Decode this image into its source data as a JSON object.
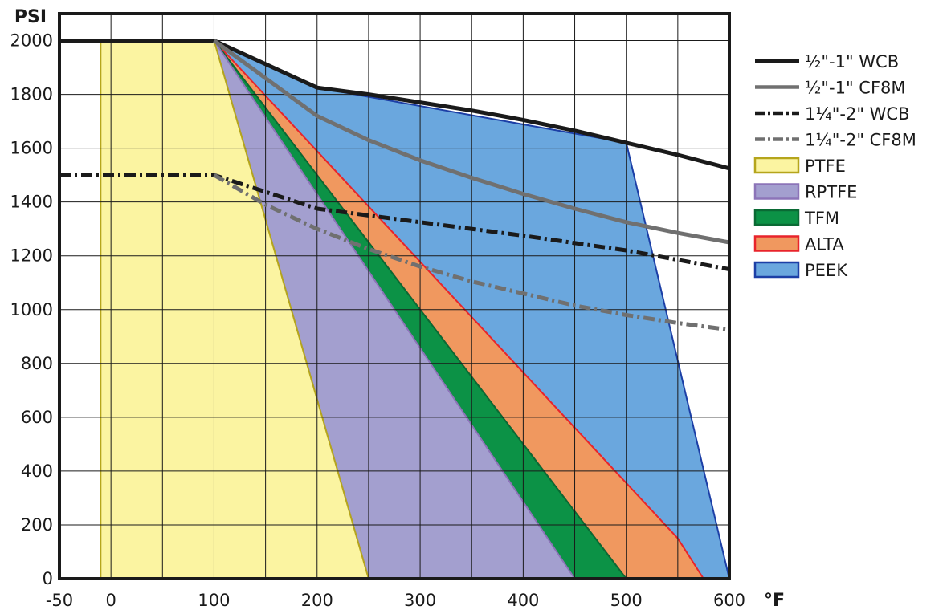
{
  "chart_data": {
    "type": "area",
    "title": "",
    "xlabel": "°F",
    "ylabel": "PSI",
    "xlim": [
      -50,
      600
    ],
    "ylim": [
      0,
      2100
    ],
    "x_ticks": [
      -50,
      0,
      100,
      200,
      300,
      400,
      500,
      600
    ],
    "y_ticks": [
      0,
      200,
      400,
      600,
      800,
      1000,
      1200,
      1400,
      1600,
      1800,
      2000
    ],
    "grid": true,
    "legend_position": "right",
    "areas": [
      {
        "name": "PEEK",
        "fill": "#6aa7de",
        "stroke": "#1c3fa6",
        "points": [
          [
            100,
            2000
          ],
          [
            200,
            1825
          ],
          [
            500,
            1620
          ],
          [
            600,
            0
          ],
          [
            500,
            0
          ]
        ]
      },
      {
        "name": "ALTA",
        "fill": "#f0985f",
        "stroke": "#e8242b",
        "points": [
          [
            100,
            2000
          ],
          [
            550,
            150
          ],
          [
            575,
            0
          ],
          [
            500,
            0
          ]
        ]
      },
      {
        "name": "TFM",
        "fill": "#0c9246",
        "stroke": "#0a6a34",
        "points": [
          [
            100,
            2000
          ],
          [
            500,
            0
          ],
          [
            450,
            0
          ]
        ]
      },
      {
        "name": "RPTFE",
        "fill": "#a39fcf",
        "stroke": "#8c74b8",
        "points": [
          [
            100,
            2000
          ],
          [
            450,
            0
          ],
          [
            250,
            0
          ]
        ]
      },
      {
        "name": "PTFE",
        "fill": "#fbf4a1",
        "stroke": "#b5a51c",
        "points": [
          [
            -10,
            2000
          ],
          [
            100,
            2000
          ],
          [
            250,
            0
          ],
          [
            -10,
            0
          ]
        ]
      }
    ],
    "series": [
      {
        "name": "½\"-1\" WCB",
        "color": "#1a1a1a",
        "style": "solid",
        "x": [
          -50,
          100,
          200,
          250,
          300,
          350,
          400,
          450,
          500,
          550,
          600
        ],
        "y": [
          2000,
          2000,
          1825,
          1800,
          1770,
          1740,
          1705,
          1665,
          1620,
          1575,
          1525
        ]
      },
      {
        "name": "½\"-1\" CF8M",
        "color": "#707070",
        "style": "solid",
        "x": [
          100,
          200,
          250,
          300,
          350,
          400,
          450,
          500,
          550,
          600
        ],
        "y": [
          2000,
          1720,
          1630,
          1555,
          1490,
          1430,
          1375,
          1325,
          1285,
          1250
        ]
      },
      {
        "name": "1¼\"-2\" WCB",
        "color": "#1a1a1a",
        "style": "dashdot",
        "x": [
          -50,
          100,
          200,
          300,
          400,
          500,
          600
        ],
        "y": [
          1500,
          1500,
          1375,
          1325,
          1275,
          1220,
          1150
        ]
      },
      {
        "name": "1¼\"-2\" CF8M",
        "color": "#707070",
        "style": "dashdot",
        "x": [
          100,
          150,
          200,
          250,
          300,
          350,
          400,
          450,
          500,
          550,
          600
        ],
        "y": [
          1500,
          1390,
          1300,
          1225,
          1160,
          1105,
          1060,
          1015,
          980,
          950,
          925
        ]
      }
    ],
    "legend": [
      {
        "label": "½\"-1\" WCB",
        "kind": "line",
        "color": "#1a1a1a",
        "style": "solid"
      },
      {
        "label": "½\"-1\" CF8M",
        "kind": "line",
        "color": "#707070",
        "style": "solid"
      },
      {
        "label": "1¼\"-2\" WCB",
        "kind": "line",
        "color": "#1a1a1a",
        "style": "dashdot"
      },
      {
        "label": "1¼\"-2\" CF8M",
        "kind": "line",
        "color": "#707070",
        "style": "dashdot"
      },
      {
        "label": "PTFE",
        "kind": "box",
        "fill": "#fbf4a1",
        "stroke": "#b5a51c"
      },
      {
        "label": "RPTFE",
        "kind": "box",
        "fill": "#a39fcf",
        "stroke": "#8c74b8"
      },
      {
        "label": "TFM",
        "kind": "box",
        "fill": "#0c9246",
        "stroke": "#0a6a34"
      },
      {
        "label": "ALTA",
        "kind": "box",
        "fill": "#f0985f",
        "stroke": "#e8242b"
      },
      {
        "label": "PEEK",
        "kind": "box",
        "fill": "#6aa7de",
        "stroke": "#1c3fa6"
      }
    ]
  }
}
